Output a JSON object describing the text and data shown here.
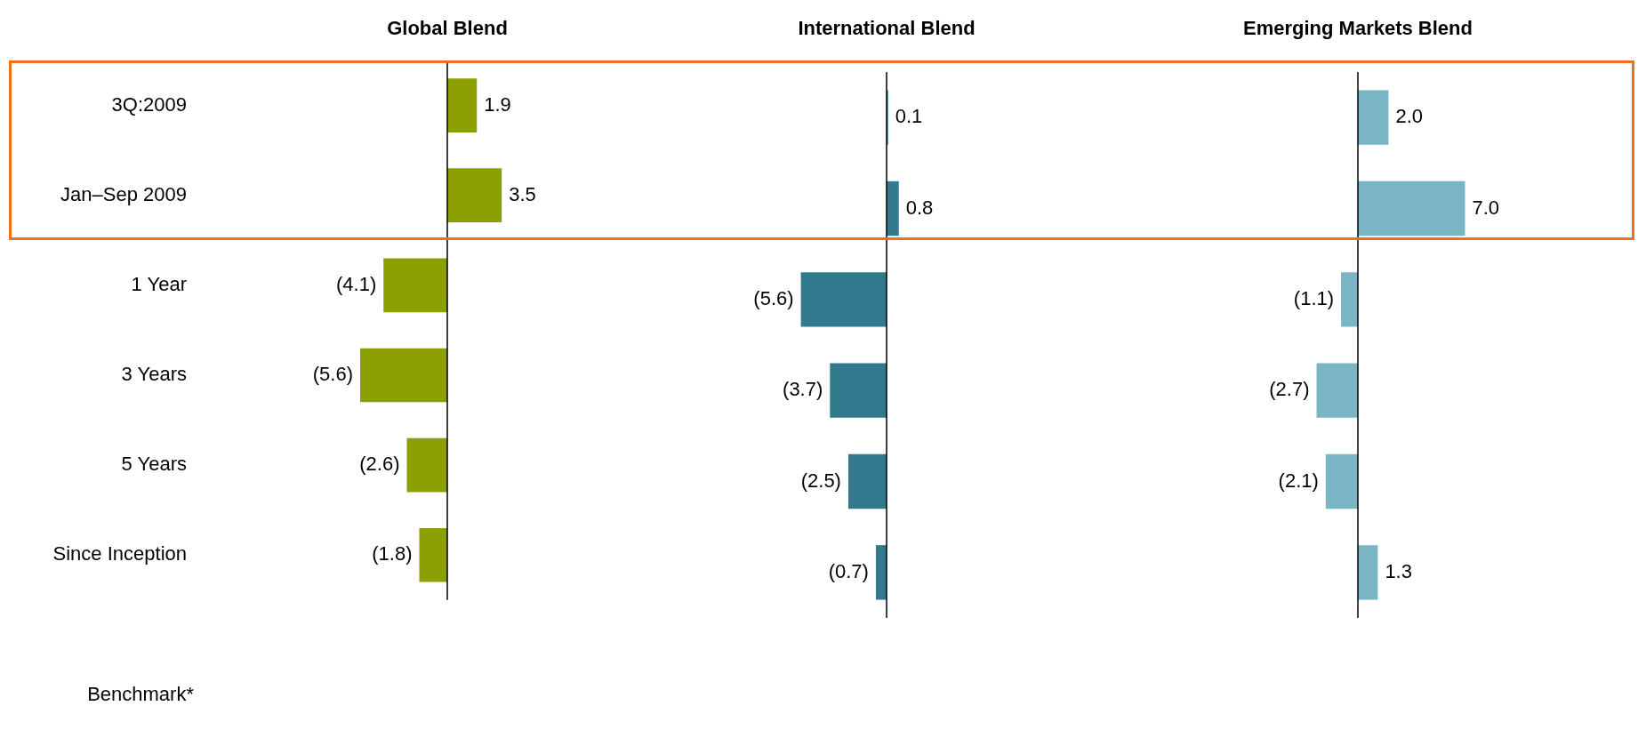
{
  "chart_data": [
    {
      "type": "bar",
      "orientation": "horizontal",
      "title": "Global Blend",
      "categories": [
        "3Q:2009",
        "Jan–Sep 2009",
        "1 Year",
        "3 Years",
        "5 Years",
        "Since Inception"
      ],
      "tick_labels": "y",
      "series": [
        {
          "color": "#8ca003",
          "values": [
            1.9,
            3.5,
            -4.1,
            -5.6,
            -2.6,
            -1.8
          ],
          "value_labels": [
            "1.9",
            "3.5",
            "(4.1)",
            "(5.6)",
            "(2.6)",
            "(1.8)"
          ]
        }
      ],
      "annotations": [
        "Benchmark*"
      ]
    },
    {
      "type": "bar",
      "orientation": "horizontal",
      "title": "International Blend",
      "tick_labels": false,
      "series": [
        {
          "color": "#327b8e",
          "values": [
            0.1,
            0.8,
            -5.6,
            -3.7,
            -2.5,
            -0.7
          ],
          "value_labels": [
            "0.1",
            "0.8",
            "(5.6)",
            "(3.7)",
            "(2.5)",
            "(0.7)"
          ]
        }
      ]
    },
    {
      "type": "bar",
      "orientation": "horizontal",
      "title": "Emerging Markets Blend",
      "tick_labels": false,
      "series": [
        {
          "color": "#7ab5c5",
          "values": [
            2.0,
            7.0,
            -1.1,
            -2.7,
            -2.1,
            1.3
          ],
          "value_labels": [
            "2.0",
            "7.0",
            "(1.1)",
            "(2.7)",
            "(2.1)",
            "1.3"
          ]
        }
      ]
    }
  ]
}
